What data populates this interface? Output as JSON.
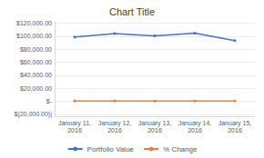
{
  "chart_data": {
    "type": "line",
    "title": "Chart Title",
    "categories": [
      "January 11,\n2016",
      "January 12,\n2016",
      "January 13,\n2016",
      "January 14,\n2016",
      "January 15,\n2016"
    ],
    "series": [
      {
        "name": "Portfolio Value",
        "color": "#4472C4",
        "values": [
          98500,
          104000,
          100500,
          104500,
          93000
        ]
      },
      {
        "name": "% Change",
        "color": "#ED7D31",
        "values": [
          500,
          500,
          200,
          300,
          400
        ]
      }
    ],
    "ylim": [
      -23000,
      122000
    ],
    "yticks": [
      {
        "value": -20000,
        "label": "$(20,000.00)|"
      },
      {
        "value": 0,
        "label": "$-"
      },
      {
        "value": 20000,
        "label": "$20,000.00"
      },
      {
        "value": 40000,
        "label": "$40,000.00"
      },
      {
        "value": 60000,
        "label": "$60,000.00"
      },
      {
        "value": 80000,
        "label": "$80,000.00"
      },
      {
        "value": 100000,
        "label": "$100,000.00"
      },
      {
        "value": 120000,
        "label": "$120,000.00"
      }
    ],
    "grid": true,
    "legend": "bottom",
    "marker": "circle"
  }
}
